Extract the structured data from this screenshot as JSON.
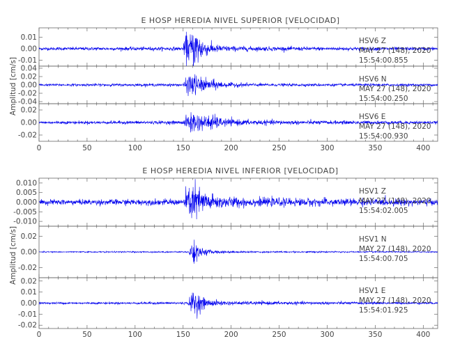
{
  "chart_data": [
    {
      "type": "line",
      "title": "E HOSP HEREDIA NIVEL SUPERIOR [VELOCIDAD]",
      "ylabel": "Amplitud [cm/s]",
      "xlabel": "",
      "xlim": [
        0,
        415
      ],
      "x_ticks": [
        "0",
        "50",
        "100",
        "150",
        "200",
        "250",
        "300",
        "350",
        "400"
      ],
      "color": "#0000ee",
      "grid": false,
      "traces": [
        {
          "station": "HSV6",
          "component": "Z",
          "date": "MAY 27 (148), 2020",
          "time": "15:54:00.855",
          "ylim": [
            -0.015,
            0.018
          ],
          "y_ticks": [
            "0.01",
            "0.00",
            "-0.01"
          ],
          "noise": 0.0008,
          "envelope": [
            [
              0,
              0.0012
            ],
            [
              150,
              0.0014
            ],
            [
              153,
              0.012
            ],
            [
              156,
              0.01
            ],
            [
              160,
              0.014
            ],
            [
              164,
              0.016
            ],
            [
              168,
              0.01
            ],
            [
              175,
              0.005
            ],
            [
              185,
              0.003
            ],
            [
              200,
              0.002
            ],
            [
              260,
              0.0015
            ],
            [
              415,
              0.0012
            ]
          ]
        },
        {
          "station": "HSV6",
          "component": "N",
          "date": "MAY 27 (148), 2020",
          "time": "15:54:00.250",
          "ylim": [
            -0.045,
            0.045
          ],
          "y_ticks": [
            "0.04",
            "0.02",
            "0.00",
            "-0.02",
            "-0.04"
          ],
          "noise": 0.0015,
          "envelope": [
            [
              0,
              0.0025
            ],
            [
              150,
              0.003
            ],
            [
              155,
              0.02
            ],
            [
              160,
              0.028
            ],
            [
              165,
              0.018
            ],
            [
              175,
              0.012
            ],
            [
              185,
              0.01
            ],
            [
              195,
              0.005
            ],
            [
              240,
              0.003
            ],
            [
              415,
              0.0025
            ]
          ]
        },
        {
          "station": "HSV6",
          "component": "E",
          "date": "MAY 27 (148), 2020",
          "time": "15:54:00.930",
          "ylim": [
            -0.03,
            0.03
          ],
          "y_ticks": [
            "0.02",
            "0.00",
            "-0.02"
          ],
          "noise": 0.001,
          "envelope": [
            [
              0,
              0.002
            ],
            [
              150,
              0.0025
            ],
            [
              155,
              0.012
            ],
            [
              160,
              0.018
            ],
            [
              166,
              0.012
            ],
            [
              172,
              0.009
            ],
            [
              180,
              0.012
            ],
            [
              190,
              0.006
            ],
            [
              210,
              0.004
            ],
            [
              260,
              0.003
            ],
            [
              415,
              0.002
            ]
          ]
        }
      ]
    },
    {
      "type": "line",
      "title": "E HOSP HEREDIA NIVEL INFERIOR [VELOCIDAD]",
      "ylabel": "Amplitud [cm/s]",
      "xlabel": "",
      "xlim": [
        0,
        415
      ],
      "x_ticks": [
        "0",
        "50",
        "100",
        "150",
        "200",
        "250",
        "300",
        "350",
        "400"
      ],
      "color": "#0000ee",
      "grid": false,
      "traces": [
        {
          "station": "HSV1",
          "component": "Z",
          "date": "MAY 27 (148), 2020",
          "time": "15:54:02.005",
          "ylim": [
            -0.0125,
            0.0125
          ],
          "y_ticks": [
            "0.010",
            "0.005",
            "0.000",
            "-0.005",
            "-0.010"
          ],
          "noise": 0.0007,
          "envelope": [
            [
              0,
              0.0012
            ],
            [
              150,
              0.0014
            ],
            [
              155,
              0.007
            ],
            [
              160,
              0.009
            ],
            [
              165,
              0.008
            ],
            [
              172,
              0.005
            ],
            [
              185,
              0.003
            ],
            [
              220,
              0.002
            ],
            [
              415,
              0.0014
            ]
          ]
        },
        {
          "station": "HSV1",
          "component": "N",
          "date": "MAY 27 (148), 2020",
          "time": "15:54:00.705",
          "ylim": [
            -0.033,
            0.033
          ],
          "y_ticks": [
            "0.02",
            "0.00",
            "-0.02"
          ],
          "noise": 0.0004,
          "envelope": [
            [
              0,
              0.0006
            ],
            [
              155,
              0.0008
            ],
            [
              158,
              0.006
            ],
            [
              161,
              0.022
            ],
            [
              163,
              0.012
            ],
            [
              168,
              0.005
            ],
            [
              180,
              0.002
            ],
            [
              210,
              0.001
            ],
            [
              415,
              0.0006
            ]
          ]
        },
        {
          "station": "HSV1",
          "component": "E",
          "date": "MAY 27 (148), 2020",
          "time": "15:54:01.925",
          "ylim": [
            -0.023,
            0.023
          ],
          "y_ticks": [
            "0.02",
            "0.01",
            "0.00",
            "-0.01",
            "-0.02"
          ],
          "noise": 0.0005,
          "envelope": [
            [
              0,
              0.0008
            ],
            [
              155,
              0.001
            ],
            [
              158,
              0.006
            ],
            [
              162,
              0.013
            ],
            [
              166,
              0.007
            ],
            [
              175,
              0.003
            ],
            [
              200,
              0.0015
            ],
            [
              415,
              0.0008
            ]
          ]
        }
      ]
    }
  ]
}
